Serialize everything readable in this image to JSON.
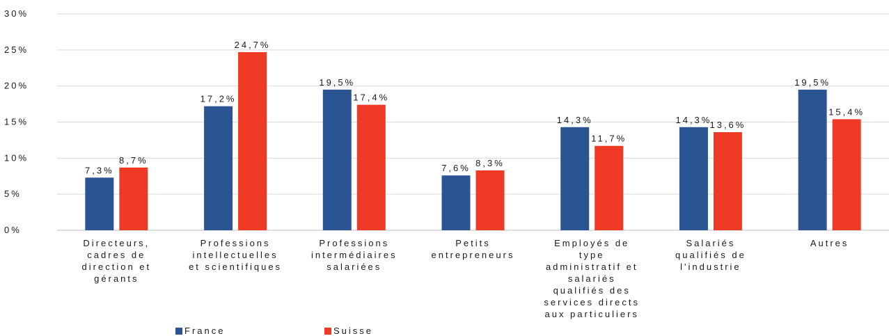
{
  "chart_data": {
    "type": "bar",
    "categories": [
      [
        "Directeurs,",
        "cadres de",
        "direction et",
        "gérants"
      ],
      [
        "Professions",
        "intellectuelles",
        "et scientifiques"
      ],
      [
        "Professions",
        "intermédiaires",
        "salariées"
      ],
      [
        "Petits",
        "entrepreneurs"
      ],
      [
        "Employés de",
        "type",
        "administratif et",
        "salariés",
        "qualifiés des",
        "services directs",
        "aux particuliers"
      ],
      [
        "Salariés",
        "qualifiés de",
        "l'industrie"
      ],
      [
        "Autres"
      ]
    ],
    "series": [
      {
        "name": "France",
        "color": "#2b5592",
        "values": [
          7.3,
          17.2,
          19.5,
          7.6,
          14.3,
          14.3,
          19.5
        ],
        "labels": [
          "7,3%",
          "17,2%",
          "19,5%",
          "7,6%",
          "14,3%",
          "14,3%",
          "19,5%"
        ]
      },
      {
        "name": "Suisse",
        "color": "#ee3a24",
        "values": [
          8.7,
          24.7,
          17.4,
          8.3,
          11.7,
          13.6,
          15.4
        ],
        "labels": [
          "8,7%",
          "24,7%",
          "17,4%",
          "8,3%",
          "11,7%",
          "13,6%",
          "15,4%"
        ]
      }
    ],
    "y_ticks": [
      "0%",
      "5%",
      "10%",
      "15%",
      "20%",
      "25%",
      "30%"
    ],
    "ylim": [
      0,
      30
    ],
    "grid": true,
    "legend": "bottom-left",
    "title": "",
    "xlabel": "",
    "ylabel": ""
  }
}
